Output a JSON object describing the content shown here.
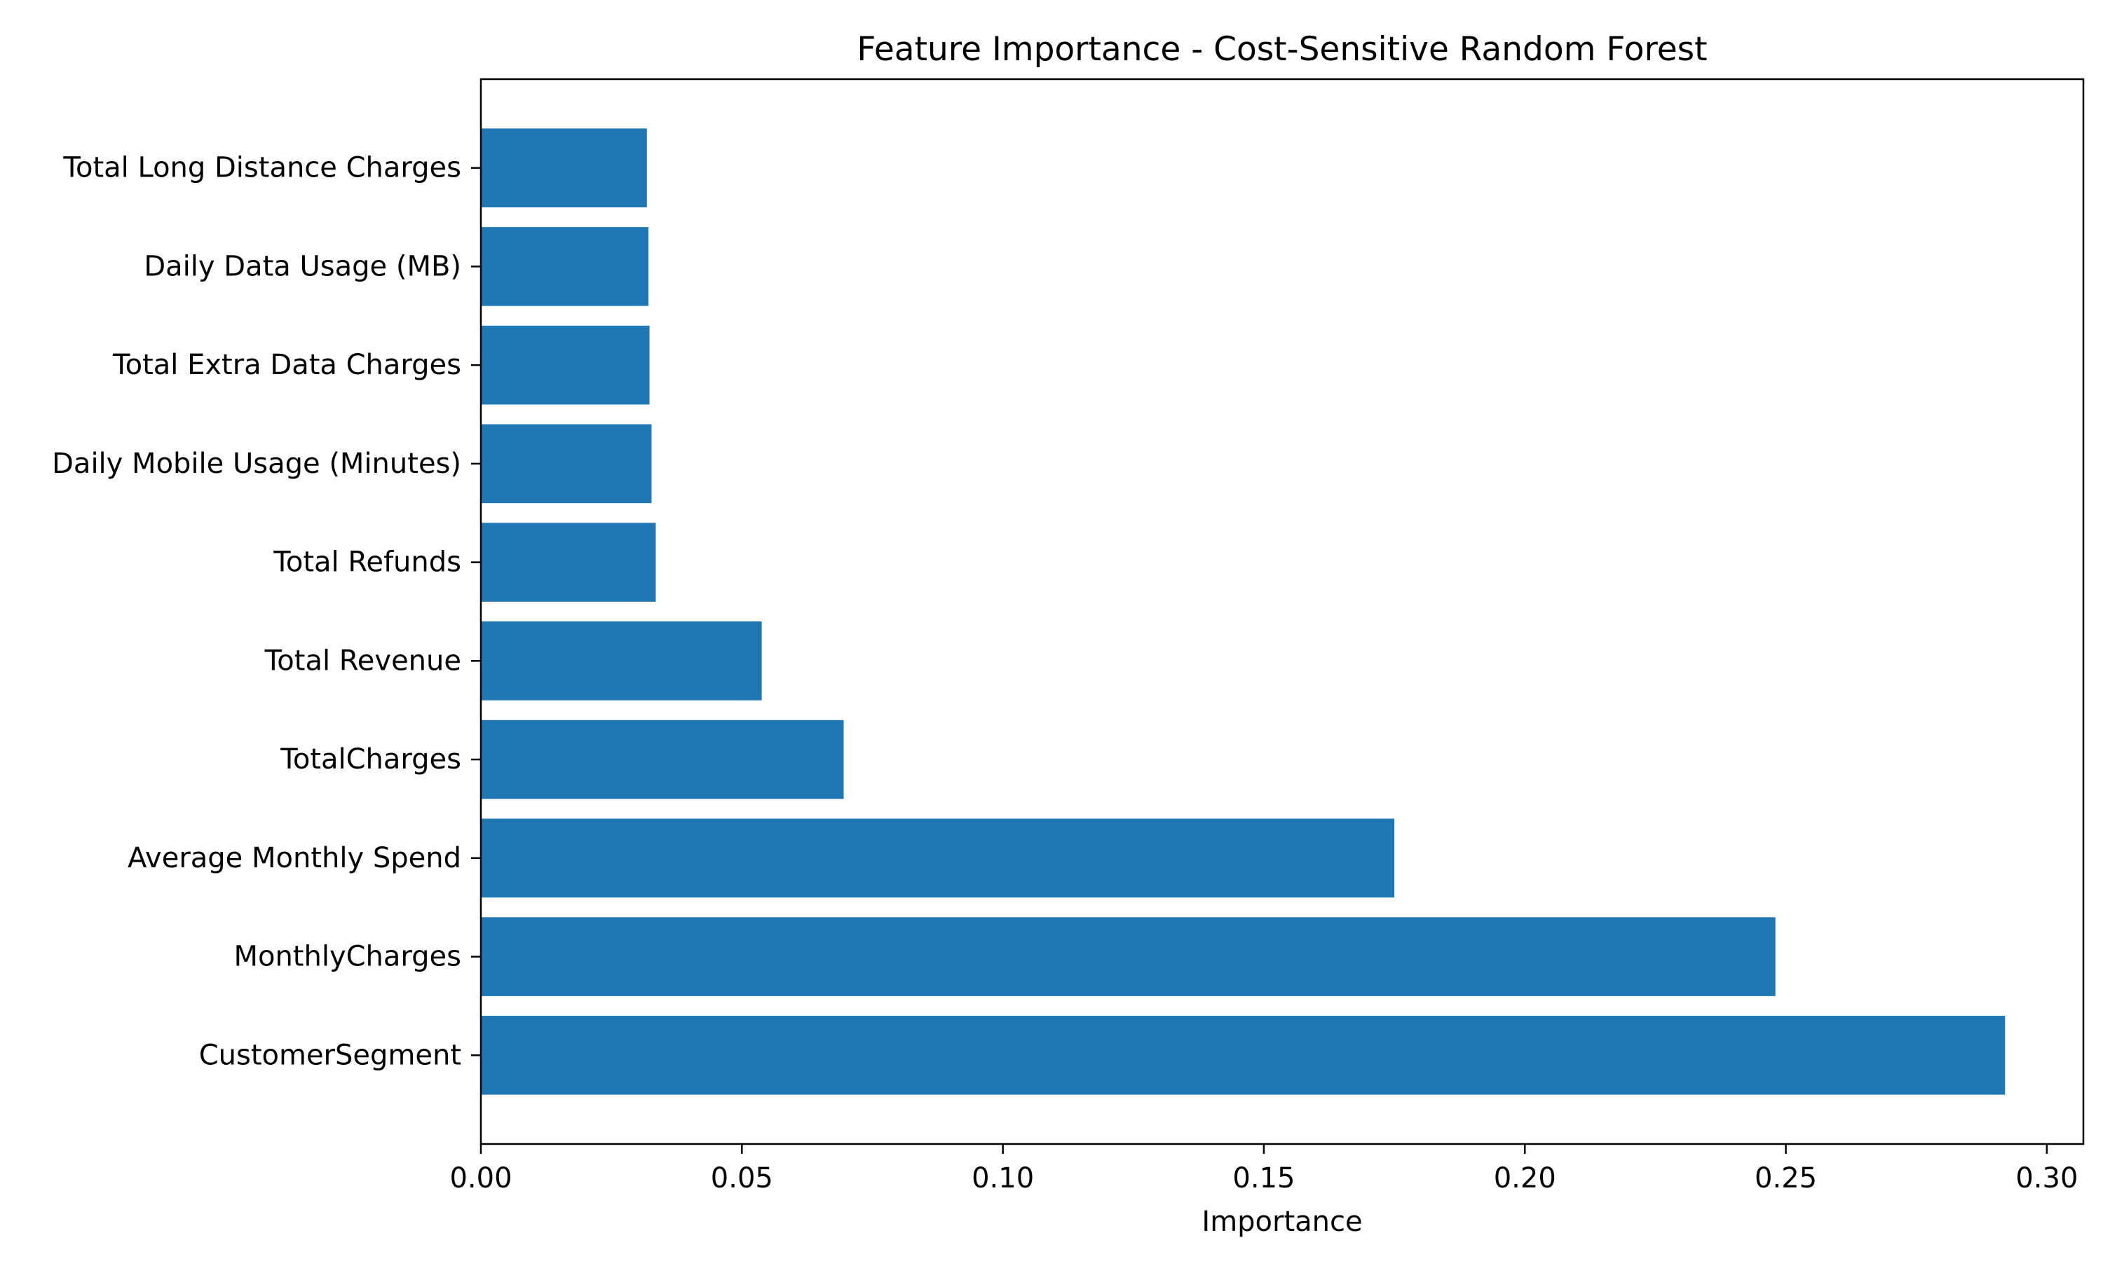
{
  "chart_data": {
    "type": "bar",
    "orientation": "horizontal",
    "title": "Feature Importance - Cost-Sensitive Random Forest",
    "xlabel": "Importance",
    "ylabel": "",
    "categories": [
      "CustomerSegment",
      "MonthlyCharges",
      "Average Monthly Spend",
      "TotalCharges",
      "Total Revenue",
      "Total Refunds",
      "Daily Mobile Usage (Minutes)",
      "Total Extra Data Charges",
      "Daily Data Usage (MB)",
      "Total Long Distance Charges"
    ],
    "values": [
      0.292,
      0.248,
      0.175,
      0.0695,
      0.0538,
      0.0335,
      0.0327,
      0.0323,
      0.0321,
      0.0318
    ],
    "xlim": [
      0,
      0.307
    ],
    "xticks": [
      "0.00",
      "0.05",
      "0.10",
      "0.15",
      "0.20",
      "0.25",
      "0.30"
    ],
    "xtick_values": [
      0,
      0.05,
      0.1,
      0.15,
      0.2,
      0.25,
      0.3
    ],
    "grid": false,
    "bar_color": "#1f77b4"
  }
}
